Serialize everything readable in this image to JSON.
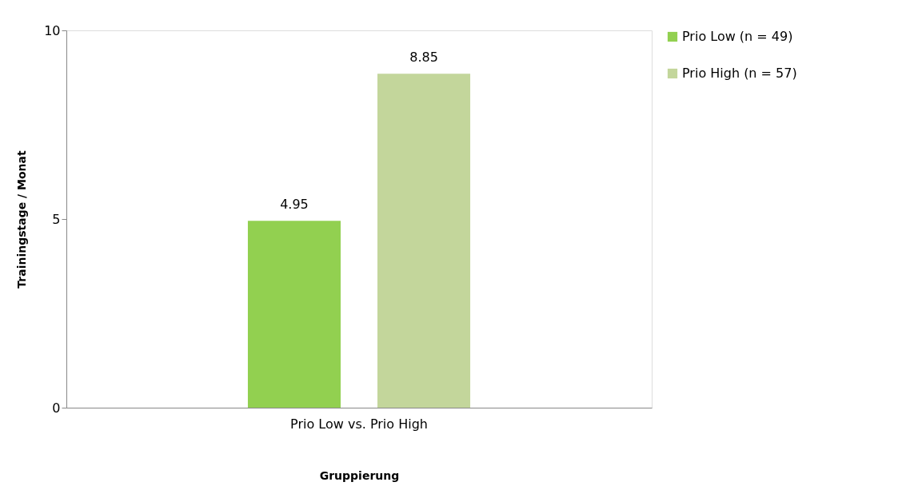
{
  "chart_data": {
    "type": "bar",
    "xlabel": "Gruppierung",
    "ylabel": "Trainingstage / Monat",
    "categories": [
      "Prio Low vs. Prio High"
    ],
    "series": [
      {
        "name": "Prio Low (n = 49)",
        "color": "#92d050",
        "values": [
          4.95
        ]
      },
      {
        "name": "Prio High (n = 57)",
        "color": "#c3d69b",
        "values": [
          8.85
        ]
      }
    ],
    "ylim": [
      0,
      10
    ],
    "yticks": [
      0,
      5,
      10
    ],
    "grid": false,
    "legend": "right",
    "data_labels": true
  }
}
